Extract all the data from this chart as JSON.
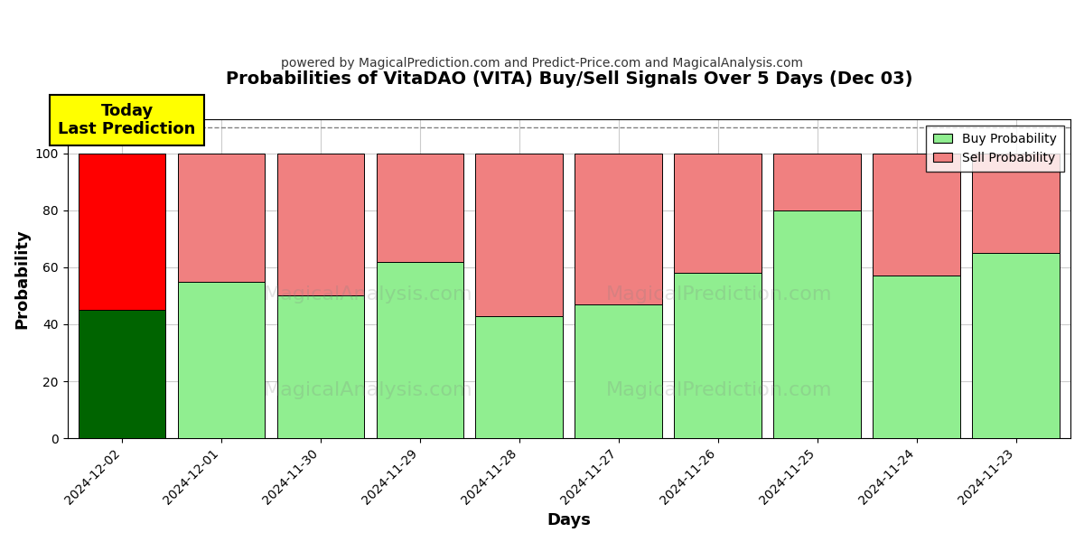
{
  "title": "Probabilities of VitaDAO (VITA) Buy/Sell Signals Over 5 Days (Dec 03)",
  "subtitle": "powered by MagicalPrediction.com and Predict-Price.com and MagicalAnalysis.com",
  "xlabel": "Days",
  "ylabel": "Probability",
  "categories": [
    "2024-12-02",
    "2024-12-01",
    "2024-11-30",
    "2024-11-29",
    "2024-11-28",
    "2024-11-27",
    "2024-11-26",
    "2024-11-25",
    "2024-11-24",
    "2024-11-23"
  ],
  "buy_values": [
    45,
    55,
    50,
    62,
    43,
    47,
    58,
    80,
    57,
    65
  ],
  "sell_values": [
    55,
    45,
    50,
    38,
    57,
    53,
    42,
    20,
    43,
    35
  ],
  "buy_colors": [
    "#006400",
    "#90EE90",
    "#90EE90",
    "#90EE90",
    "#90EE90",
    "#90EE90",
    "#90EE90",
    "#90EE90",
    "#90EE90",
    "#90EE90"
  ],
  "sell_colors": [
    "#FF0000",
    "#F08080",
    "#F08080",
    "#F08080",
    "#F08080",
    "#F08080",
    "#F08080",
    "#F08080",
    "#F08080",
    "#F08080"
  ],
  "buy_legend_color": "#90EE90",
  "sell_legend_color": "#F08080",
  "today_box_color": "#FFFF00",
  "today_label": "Today\nLast Prediction",
  "ylim": [
    0,
    112
  ],
  "yticks": [
    0,
    20,
    40,
    60,
    80,
    100
  ],
  "dashed_line_y": 109,
  "watermark_texts": [
    "MagicalAnalysis.com",
    "MagicalPrediction.com"
  ],
  "background_color": "#ffffff",
  "grid_color": "#cccccc"
}
